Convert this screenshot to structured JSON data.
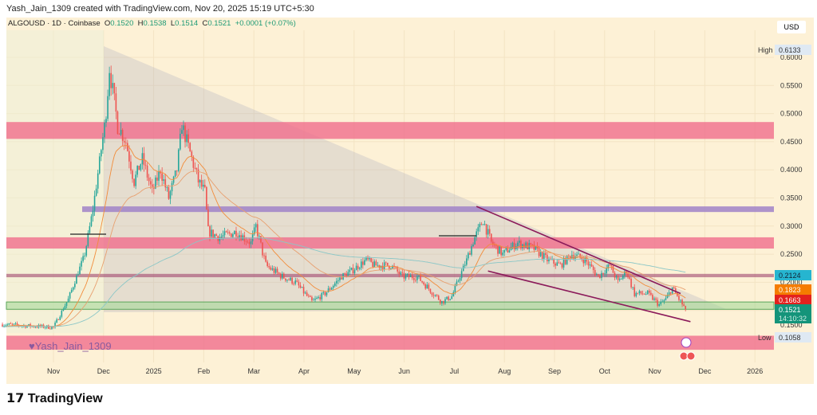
{
  "header": {
    "created": "Yash_Jain_1309 created with TradingView.com, Nov 20, 2025 15:19 UTC+5:30"
  },
  "legend": {
    "symbol": "ALGOUSD · 1D · Coinbase",
    "o_label": "O",
    "o": "0.1520",
    "h_label": "H",
    "h": "0.1538",
    "l_label": "L",
    "l": "0.1514",
    "c_label": "C",
    "c": "0.1521",
    "change": "+0.0001 (+0.07%)"
  },
  "currency": "USD",
  "watermark": "Yash_Jain_1309",
  "brand": "TradingView",
  "colors": {
    "background": "#fdf1d6",
    "up": "#26a69a",
    "down": "#ef5350",
    "pink_zone": "#f2869a",
    "purple_zone": "#a98bc9",
    "wedge": "#8b1a5a",
    "ema_fast": "#f28c3a",
    "ema_slow": "#8bc7c7"
  },
  "chart_data": {
    "type": "candlestick",
    "symbol": "ALGOUSD",
    "interval": "1D",
    "exchange": "Coinbase",
    "ylim": [
      0.08,
      0.63
    ],
    "y_ticks": [
      "0.6000",
      "0.5500",
      "0.5000",
      "0.4500",
      "0.4000",
      "0.3500",
      "0.3000",
      "0.2500",
      "0.2000",
      "0.1500"
    ],
    "x_ticks": [
      "Nov",
      "Dec",
      "2025",
      "Feb",
      "Mar",
      "Apr",
      "May",
      "Jun",
      "Jul",
      "Aug",
      "Sep",
      "Oct",
      "Nov",
      "Dec",
      "2026"
    ],
    "approx_closes": [
      [
        "2024-10-01",
        0.125
      ],
      [
        "2024-10-20",
        0.122
      ],
      [
        "2024-11-01",
        0.12
      ],
      [
        "2024-11-10",
        0.17
      ],
      [
        "2024-11-20",
        0.25
      ],
      [
        "2024-11-25",
        0.33
      ],
      [
        "2024-12-03",
        0.5
      ],
      [
        "2024-12-05",
        0.58
      ],
      [
        "2024-12-10",
        0.48
      ],
      [
        "2024-12-15",
        0.45
      ],
      [
        "2024-12-20",
        0.38
      ],
      [
        "2024-12-25",
        0.42
      ],
      [
        "2024-12-31",
        0.36
      ],
      [
        "2025-01-05",
        0.4
      ],
      [
        "2025-01-10",
        0.35
      ],
      [
        "2025-01-15",
        0.4
      ],
      [
        "2025-01-18",
        0.48
      ],
      [
        "2025-01-22",
        0.44
      ],
      [
        "2025-01-28",
        0.38
      ],
      [
        "2025-02-01",
        0.36
      ],
      [
        "2025-02-03",
        0.29
      ],
      [
        "2025-02-10",
        0.28
      ],
      [
        "2025-02-20",
        0.29
      ],
      [
        "2025-03-01",
        0.27
      ],
      [
        "2025-03-04",
        0.3
      ],
      [
        "2025-03-10",
        0.23
      ],
      [
        "2025-03-20",
        0.21
      ],
      [
        "2025-03-28",
        0.2
      ],
      [
        "2025-04-07",
        0.165
      ],
      [
        "2025-04-15",
        0.18
      ],
      [
        "2025-04-25",
        0.21
      ],
      [
        "2025-05-01",
        0.22
      ],
      [
        "2025-05-10",
        0.24
      ],
      [
        "2025-05-15",
        0.23
      ],
      [
        "2025-05-25",
        0.23
      ],
      [
        "2025-06-01",
        0.21
      ],
      [
        "2025-06-10",
        0.21
      ],
      [
        "2025-06-20",
        0.18
      ],
      [
        "2025-06-25",
        0.165
      ],
      [
        "2025-07-01",
        0.175
      ],
      [
        "2025-07-10",
        0.24
      ],
      [
        "2025-07-15",
        0.28
      ],
      [
        "2025-07-20",
        0.31
      ],
      [
        "2025-07-25",
        0.27
      ],
      [
        "2025-08-01",
        0.25
      ],
      [
        "2025-08-05",
        0.26
      ],
      [
        "2025-08-10",
        0.27
      ],
      [
        "2025-08-20",
        0.26
      ],
      [
        "2025-08-28",
        0.24
      ],
      [
        "2025-09-05",
        0.23
      ],
      [
        "2025-09-12",
        0.25
      ],
      [
        "2025-09-20",
        0.24
      ],
      [
        "2025-09-28",
        0.21
      ],
      [
        "2025-10-05",
        0.23
      ],
      [
        "2025-10-10",
        0.2
      ],
      [
        "2025-10-15",
        0.22
      ],
      [
        "2025-10-20",
        0.18
      ],
      [
        "2025-10-28",
        0.18
      ],
      [
        "2025-11-04",
        0.16
      ],
      [
        "2025-11-08",
        0.17
      ],
      [
        "2025-11-12",
        0.19
      ],
      [
        "2025-11-16",
        0.17
      ],
      [
        "2025-11-20",
        0.1521
      ]
    ],
    "zones": [
      {
        "from": 0.455,
        "to": 0.485,
        "kind": "pink"
      },
      {
        "from": 0.26,
        "to": 0.28,
        "kind": "pink"
      },
      {
        "from": 0.325,
        "to": 0.335,
        "kind": "purple"
      },
      {
        "from": 0.209,
        "to": 0.215,
        "kind": "mauve"
      },
      {
        "from": 0.152,
        "to": 0.165,
        "kind": "green"
      },
      {
        "from": 0.08,
        "to": 0.105,
        "kind": "pink"
      }
    ],
    "wedge": {
      "upper": [
        [
          "2025-07-16",
          0.335
        ],
        [
          "2025-11-17",
          0.18
        ]
      ],
      "lower": [
        [
          "2025-07-23",
          0.22
        ],
        [
          "2025-11-23",
          0.13
        ]
      ]
    },
    "price_labels": {
      "high_label": "High",
      "high": "0.6133",
      "low_label": "Low",
      "low": "0.1058",
      "ma_slow": "0.2124",
      "ema_a": "0.1823",
      "ema_b": "0.1663",
      "last": "0.1521",
      "countdown": "14:10:32"
    }
  }
}
